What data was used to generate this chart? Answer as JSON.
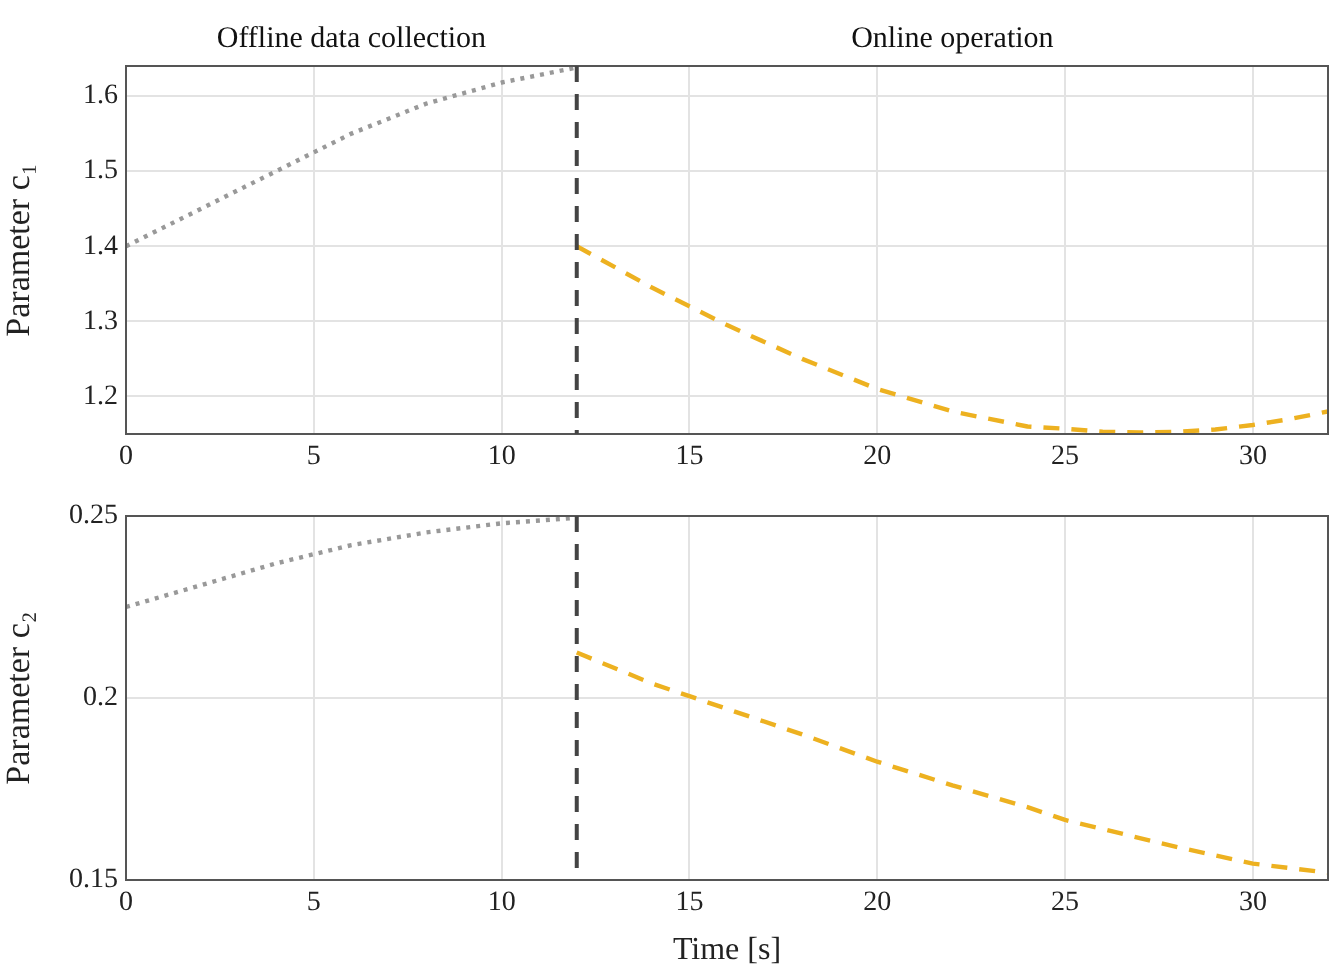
{
  "chart_data": [
    {
      "type": "line",
      "ylabel": "Parameter c₁",
      "annotations": [
        "Offline data collection",
        "Online operation"
      ],
      "xlim": [
        0,
        32
      ],
      "xticks": [
        0,
        5,
        10,
        15,
        20,
        25,
        30
      ],
      "ylim": [
        1.15,
        1.64
      ],
      "yticks": [
        1.2,
        1.3,
        1.4,
        1.5,
        1.6
      ],
      "grid": true,
      "legend": false,
      "marker": "none",
      "series": [
        {
          "color": "#999999",
          "line_style": "dotted",
          "x": [
            0,
            2,
            4,
            5,
            6,
            8,
            10,
            12
          ],
          "values": [
            1.4,
            1.45,
            1.5,
            1.525,
            1.55,
            1.59,
            1.618,
            1.638
          ]
        },
        {
          "color": "#edb120",
          "line_style": "dashed",
          "x": [
            12,
            14,
            15,
            16,
            18,
            20,
            22,
            24,
            25,
            26,
            27,
            28,
            29,
            30,
            31,
            32
          ],
          "values": [
            1.4,
            1.345,
            1.32,
            1.295,
            1.25,
            1.21,
            1.18,
            1.16,
            1.157,
            1.153,
            1.152,
            1.153,
            1.156,
            1.162,
            1.17,
            1.18
          ]
        }
      ],
      "ref_lines": [
        {
          "axis": "x",
          "value": 12,
          "color": "#444444",
          "line_style": "dashed"
        }
      ]
    },
    {
      "type": "line",
      "xlabel": "Time [s]",
      "ylabel": "Parameter c₂",
      "xlim": [
        0,
        32
      ],
      "xticks": [
        0,
        5,
        10,
        15,
        20,
        25,
        30
      ],
      "ylim": [
        0.15,
        0.25
      ],
      "yticks": [
        0.15,
        0.2,
        0.25
      ],
      "grid": true,
      "legend": false,
      "marker": "none",
      "series": [
        {
          "color": "#999999",
          "line_style": "dotted",
          "x": [
            0,
            2,
            4,
            5,
            6,
            8,
            10,
            12
          ],
          "values": [
            0.225,
            0.231,
            0.237,
            0.2395,
            0.242,
            0.2455,
            0.248,
            0.2495
          ]
        },
        {
          "color": "#edb120",
          "line_style": "dashed",
          "x": [
            12,
            14,
            15,
            16,
            18,
            20,
            22,
            24,
            25,
            26,
            28,
            30,
            32
          ],
          "values": [
            0.2125,
            0.204,
            0.2005,
            0.197,
            0.19,
            0.1825,
            0.176,
            0.17,
            0.1665,
            0.164,
            0.159,
            0.1545,
            0.152
          ]
        }
      ],
      "ref_lines": [
        {
          "axis": "x",
          "value": 12,
          "color": "#444444",
          "line_style": "dashed"
        }
      ]
    }
  ]
}
